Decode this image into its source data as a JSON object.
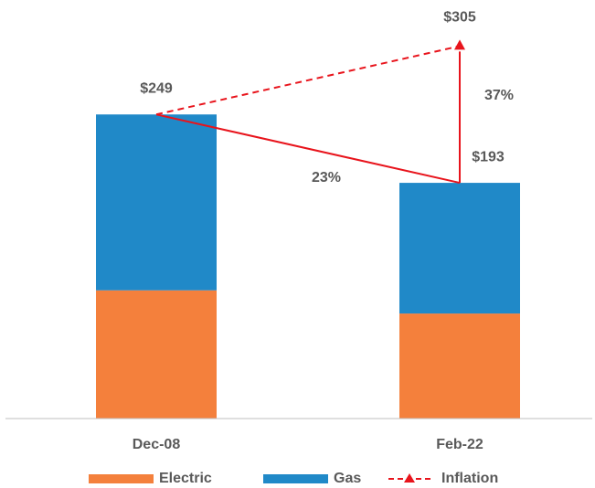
{
  "chart_data": {
    "type": "stacked_bar",
    "categories": [
      "Dec-08",
      "Feb-22"
    ],
    "series": [
      {
        "name": "Electric",
        "color": "#f4803c",
        "values": [
          105,
          86
        ]
      },
      {
        "name": "Gas",
        "color": "#2089c8",
        "values": [
          144,
          107
        ]
      },
      {
        "name": "Inflation",
        "color": "#e8141c",
        "type": "line",
        "values": [
          249,
          305
        ],
        "value_labels": [
          null,
          "$305"
        ]
      }
    ],
    "totals": [
      249,
      193
    ],
    "total_labels": [
      "$249",
      "$193"
    ],
    "annotations": [
      {
        "text": "23%"
      },
      {
        "text": "37%"
      }
    ],
    "ylim": [
      0,
      330
    ],
    "legend": "bottom"
  }
}
